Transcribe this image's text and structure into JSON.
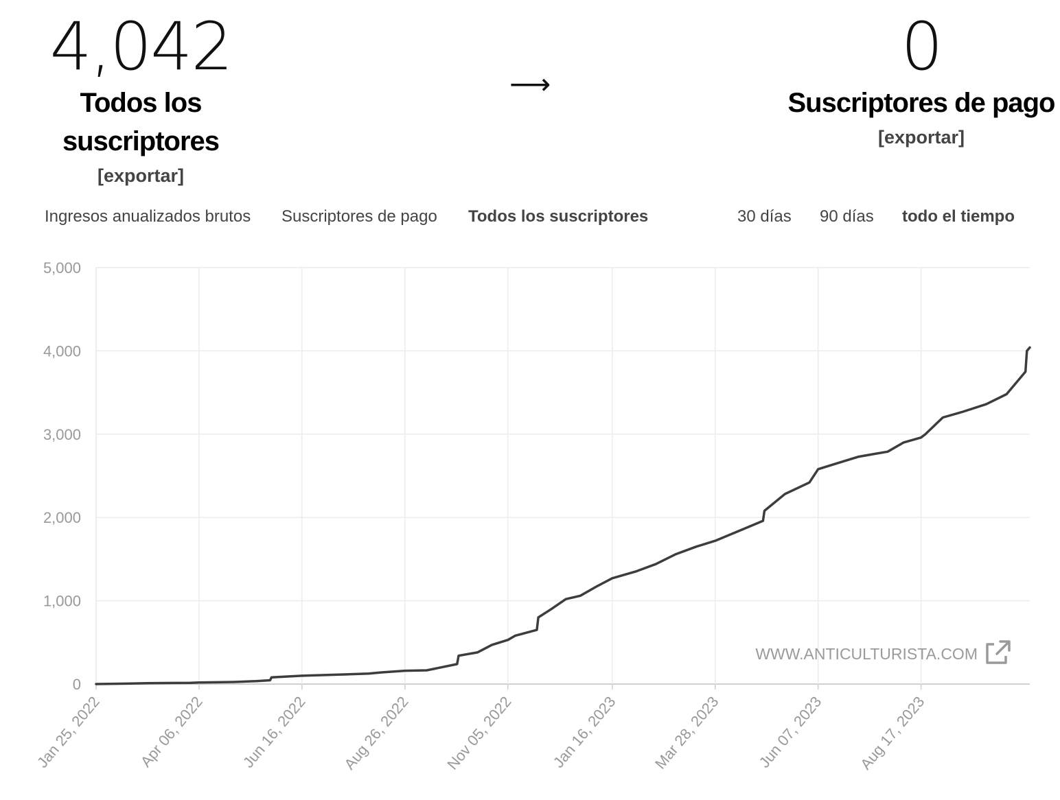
{
  "summary": {
    "all_count": "4,042",
    "all_label": "Todos los suscriptores",
    "all_export": "[exportar]",
    "arrow": "⟶",
    "paid_count": "0",
    "paid_label": "Suscriptores de pago",
    "paid_export": "[exportar]"
  },
  "metric_tabs": [
    {
      "label": "Ingresos anualizados brutos",
      "active": false
    },
    {
      "label": "Suscriptores de pago",
      "active": false
    },
    {
      "label": "Todos los suscriptores",
      "active": true
    }
  ],
  "range_tabs": [
    {
      "label": "30 días",
      "active": false
    },
    {
      "label": "90 días",
      "active": false
    },
    {
      "label": "todo el tiempo",
      "active": true
    }
  ],
  "watermark": {
    "text": "WWW.ANTICULTURISTA.COM",
    "icon": "external-link-icon"
  },
  "chart_data": {
    "type": "line",
    "title": "",
    "xlabel": "",
    "ylabel": "",
    "ylim": [
      0,
      5000
    ],
    "yticks": [
      "0",
      "1,000",
      "2,000",
      "3,000",
      "4,000",
      "5,000"
    ],
    "ytick_values": [
      0,
      1000,
      2000,
      3000,
      4000,
      5000
    ],
    "xticks": [
      "Jan 25, 2022",
      "Apr 06, 2022",
      "Jun 16, 2022",
      "Aug 26, 2022",
      "Nov 05, 2022",
      "Jan 16, 2023",
      "Mar 28, 2023",
      "Jun 07, 2023",
      "Aug 17, 2023"
    ],
    "xtick_dates": [
      "2022-01-25",
      "2022-04-06",
      "2022-06-16",
      "2022-08-26",
      "2022-11-05",
      "2023-01-16",
      "2023-03-28",
      "2023-06-07",
      "2023-08-17"
    ],
    "xlim": [
      "2022-01-25",
      "2023-10-31"
    ],
    "grid": true,
    "line_color": "#3d3d3d",
    "series": [
      {
        "name": "",
        "x": [
          "2022-01-25",
          "2022-02-15",
          "2022-03-01",
          "2022-03-31",
          "2022-04-06",
          "2022-04-30",
          "2022-05-15",
          "2022-05-25",
          "2022-05-26",
          "2022-06-16",
          "2022-07-15",
          "2022-08-01",
          "2022-08-10",
          "2022-08-26",
          "2022-09-10",
          "2022-09-20",
          "2022-10-01",
          "2022-10-02",
          "2022-10-15",
          "2022-10-25",
          "2022-11-05",
          "2022-11-10",
          "2022-11-25",
          "2022-11-26",
          "2022-12-05",
          "2022-12-15",
          "2022-12-25",
          "2023-01-05",
          "2023-01-16",
          "2023-02-01",
          "2023-02-15",
          "2023-03-01",
          "2023-03-15",
          "2023-03-28",
          "2023-04-15",
          "2023-04-30",
          "2023-05-01",
          "2023-05-15",
          "2023-06-01",
          "2023-06-07",
          "2023-06-20",
          "2023-07-05",
          "2023-07-15",
          "2023-07-25",
          "2023-08-05",
          "2023-08-17",
          "2023-08-20",
          "2023-09-01",
          "2023-09-15",
          "2023-10-01",
          "2023-10-15",
          "2023-10-28",
          "2023-10-29",
          "2023-10-31"
        ],
        "values": [
          0,
          5,
          10,
          15,
          18,
          25,
          35,
          45,
          80,
          100,
          115,
          125,
          140,
          160,
          165,
          200,
          240,
          340,
          380,
          470,
          530,
          580,
          650,
          800,
          900,
          1020,
          1060,
          1170,
          1270,
          1350,
          1440,
          1560,
          1650,
          1720,
          1850,
          1960,
          2080,
          2280,
          2420,
          2580,
          2650,
          2730,
          2760,
          2790,
          2900,
          2960,
          3000,
          3200,
          3270,
          3360,
          3480,
          3750,
          4000,
          4040
        ]
      }
    ]
  }
}
